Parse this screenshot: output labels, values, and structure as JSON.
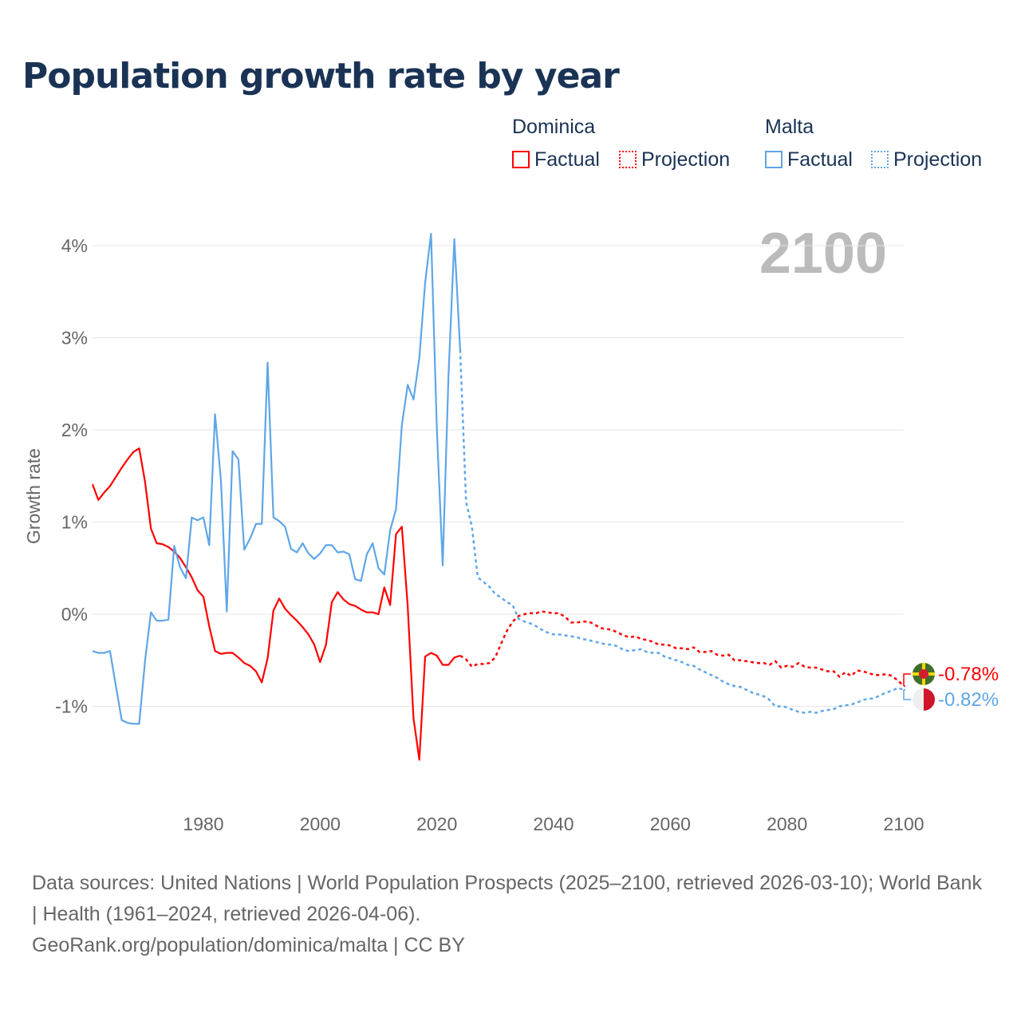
{
  "title": "Population growth rate by year",
  "legend": {
    "groups": [
      {
        "name": "Dominica",
        "factual": "Factual",
        "projection": "Projection",
        "color": "#ff0000"
      },
      {
        "name": "Malta",
        "factual": "Factual",
        "projection": "Projection",
        "color": "#5ea6e8"
      }
    ]
  },
  "year_label": "2100",
  "footer": {
    "line1": "Data sources: United Nations | World Population Prospects (2025–2100, retrieved 2026-03-10); World Bank | Health (1961–2024, retrieved 2026-04-06).",
    "line2": "GeoRank.org/population/dominica/malta | CC BY"
  },
  "chart_data": {
    "type": "line",
    "title": "Population growth rate by year",
    "xlabel": "",
    "ylabel": "Growth rate",
    "xlim": [
      1961,
      2100
    ],
    "ylim": [
      -2,
      4.5
    ],
    "xticks": [
      1980,
      2000,
      2020,
      2040,
      2060,
      2080,
      2100
    ],
    "xtick_labels": [
      "1980",
      "2000",
      "2020",
      "2040",
      "2060",
      "2080",
      "2100"
    ],
    "yticks": [
      -1,
      0,
      1,
      2,
      3,
      4
    ],
    "ytick_labels": [
      "-1%",
      "0%",
      "1%",
      "2%",
      "3%",
      "4%"
    ],
    "grid": true,
    "legend_position": "top-right",
    "series": [
      {
        "name": "Dominica",
        "color": "#ff0000",
        "end_label": "-0.78%",
        "factual_start": 1961,
        "factual": [
          1.41,
          1.24,
          1.32,
          1.39,
          1.49,
          1.59,
          1.68,
          1.76,
          1.8,
          1.44,
          0.93,
          0.77,
          0.76,
          0.73,
          0.68,
          0.61,
          0.51,
          0.4,
          0.26,
          0.19,
          -0.13,
          -0.4,
          -0.43,
          -0.42,
          -0.42,
          -0.47,
          -0.53,
          -0.56,
          -0.62,
          -0.74,
          -0.48,
          0.04,
          0.17,
          0.06,
          -0.01,
          -0.07,
          -0.14,
          -0.22,
          -0.33,
          -0.52,
          -0.33,
          0.13,
          0.24,
          0.16,
          0.11,
          0.09,
          0.05,
          0.02,
          0.02,
          0.0,
          0.29,
          0.1,
          0.87,
          0.95,
          0.09,
          -1.13,
          -1.58,
          -0.46,
          -0.42,
          -0.45,
          -0.55,
          -0.55,
          -0.47,
          -0.45
        ],
        "projection_start": 2025,
        "projection": [
          -0.49,
          -0.57,
          -0.54,
          -0.54,
          -0.53,
          -0.47,
          -0.32,
          -0.18,
          -0.08,
          -0.02,
          0.0,
          0.01,
          0.01,
          0.03,
          0.02,
          0.01,
          0.01,
          -0.03,
          -0.09,
          -0.09,
          -0.08,
          -0.08,
          -0.11,
          -0.15,
          -0.16,
          -0.17,
          -0.2,
          -0.23,
          -0.25,
          -0.24,
          -0.27,
          -0.28,
          -0.3,
          -0.33,
          -0.33,
          -0.34,
          -0.37,
          -0.37,
          -0.38,
          -0.36,
          -0.41,
          -0.41,
          -0.4,
          -0.44,
          -0.45,
          -0.44,
          -0.5,
          -0.5,
          -0.51,
          -0.52,
          -0.53,
          -0.53,
          -0.55,
          -0.51,
          -0.58,
          -0.56,
          -0.57,
          -0.53,
          -0.57,
          -0.58,
          -0.58,
          -0.6,
          -0.62,
          -0.62,
          -0.68,
          -0.63,
          -0.67,
          -0.61,
          -0.62,
          -0.64,
          -0.66,
          -0.66,
          -0.65,
          -0.67,
          -0.72,
          -0.78
        ]
      },
      {
        "name": "Malta",
        "color": "#5ea6e8",
        "end_label": "-0.82%",
        "factual_start": 1961,
        "factual": [
          -0.4,
          -0.42,
          -0.42,
          -0.4,
          -0.78,
          -1.15,
          -1.18,
          -1.19,
          -1.19,
          -0.51,
          0.02,
          -0.07,
          -0.07,
          -0.06,
          0.74,
          0.51,
          0.39,
          1.05,
          1.02,
          1.05,
          0.75,
          2.17,
          1.45,
          0.03,
          1.77,
          1.68,
          0.7,
          0.82,
          0.98,
          0.98,
          2.73,
          1.05,
          1.01,
          0.95,
          0.71,
          0.67,
          0.77,
          0.66,
          0.6,
          0.66,
          0.75,
          0.75,
          0.67,
          0.68,
          0.65,
          0.38,
          0.36,
          0.65,
          0.77,
          0.5,
          0.43,
          0.91,
          1.14,
          2.05,
          2.49,
          2.33,
          2.78,
          3.6,
          4.13,
          2.0,
          0.53,
          2.6,
          4.07,
          2.87
        ],
        "projection_start": 2025,
        "projection": [
          1.22,
          0.95,
          0.4,
          0.35,
          0.3,
          0.22,
          0.18,
          0.13,
          0.1,
          -0.05,
          -0.08,
          -0.1,
          -0.13,
          -0.17,
          -0.2,
          -0.22,
          -0.22,
          -0.23,
          -0.24,
          -0.25,
          -0.27,
          -0.28,
          -0.3,
          -0.31,
          -0.33,
          -0.33,
          -0.35,
          -0.39,
          -0.4,
          -0.39,
          -0.38,
          -0.41,
          -0.42,
          -0.42,
          -0.46,
          -0.48,
          -0.5,
          -0.52,
          -0.55,
          -0.56,
          -0.6,
          -0.63,
          -0.66,
          -0.69,
          -0.73,
          -0.76,
          -0.78,
          -0.79,
          -0.82,
          -0.85,
          -0.87,
          -0.89,
          -0.93,
          -1.0,
          -1.0,
          -1.01,
          -1.04,
          -1.06,
          -1.07,
          -1.06,
          -1.07,
          -1.05,
          -1.04,
          -1.03,
          -1.0,
          -0.99,
          -0.98,
          -0.96,
          -0.93,
          -0.92,
          -0.91,
          -0.88,
          -0.85,
          -0.83,
          -0.8,
          -0.82
        ]
      }
    ]
  }
}
